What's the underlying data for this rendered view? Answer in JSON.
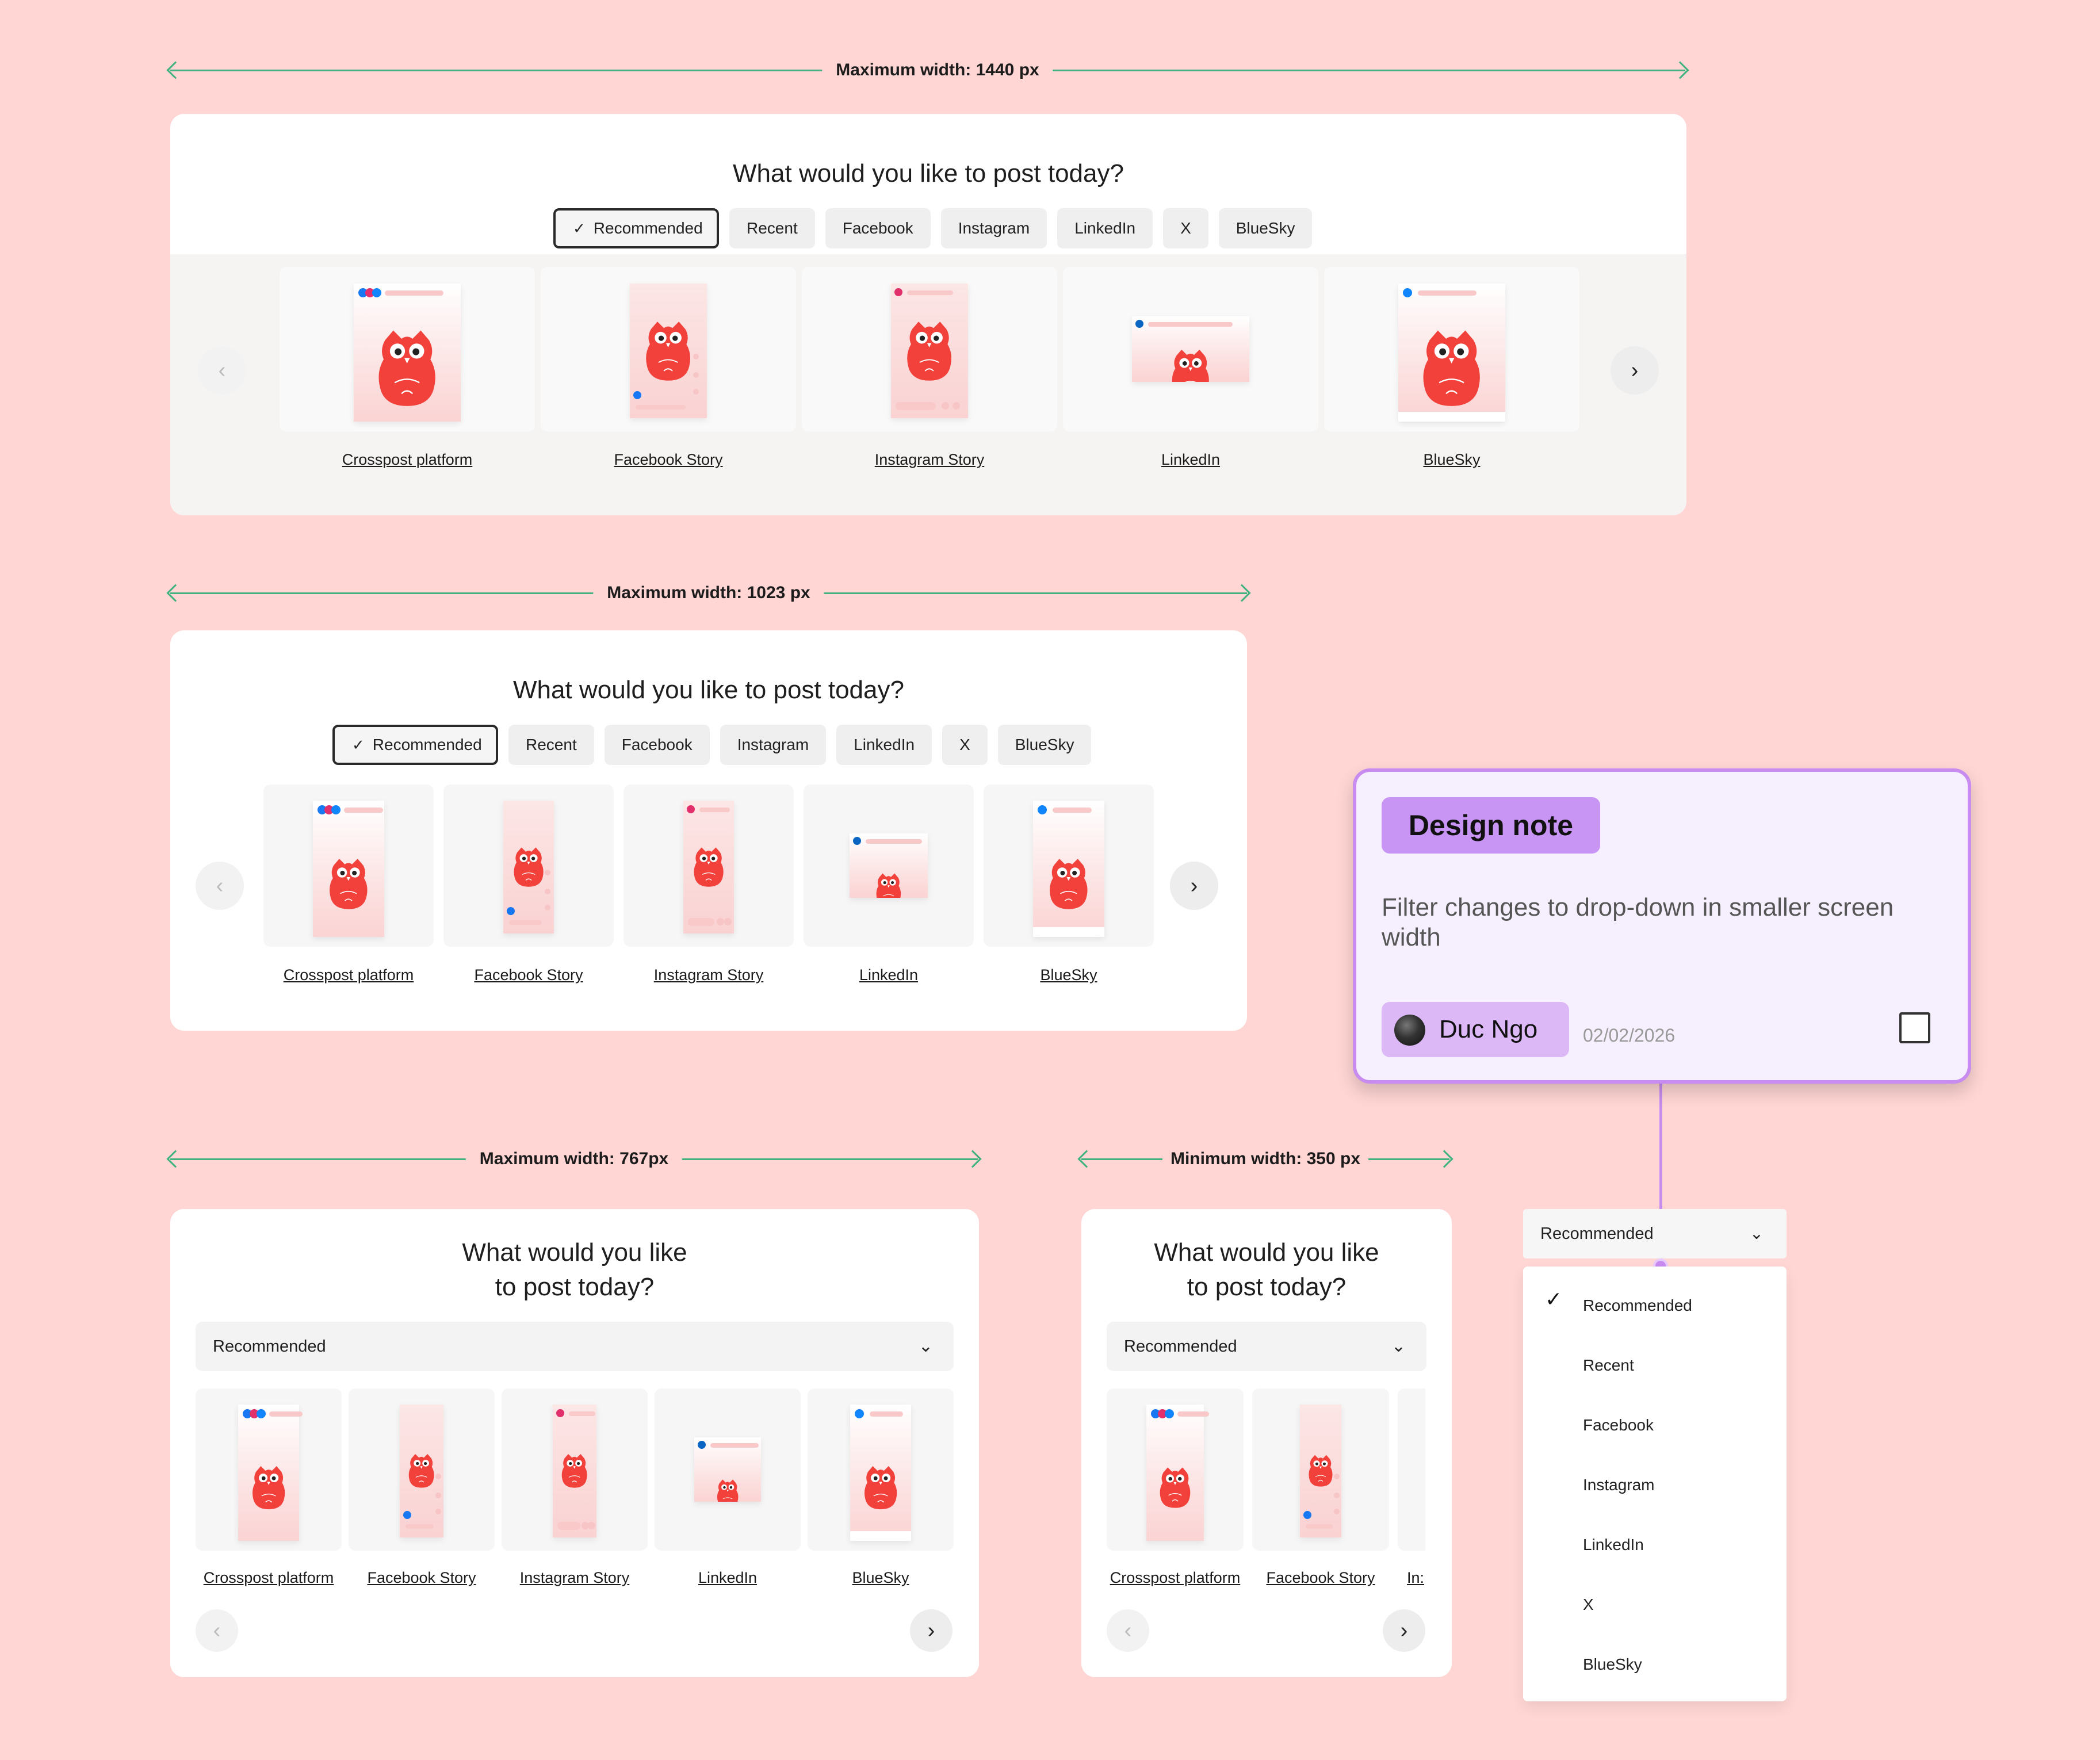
{
  "annotations": {
    "w1440": "Maximum width: 1440 px",
    "w1023": "Maximum width: 1023 px",
    "w767": "Maximum width: 767px",
    "w350": "Minimum width: 350 px"
  },
  "title_one_line": "What would you like to post today?",
  "title_line1": "What would you like",
  "title_line2": "to post today?",
  "filters": [
    "Recommended",
    "Recent",
    "Facebook",
    "Instagram",
    "LinkedIn",
    "X",
    "BlueSky"
  ],
  "check_glyph": "✓",
  "selected_filter": "Recommended",
  "templates": [
    "Crosspost platform",
    "Facebook Story",
    "Instagram Story",
    "LinkedIn",
    "BlueSky"
  ],
  "truncated_template": "In:",
  "nav": {
    "prev": "‹",
    "next": "›",
    "chevron_down": "⌄"
  },
  "design_note": {
    "tag": "Design note",
    "body": "Filter changes to drop-down in smaller screen width",
    "user": "Duc Ngo",
    "date": "02/02/2026"
  },
  "dropdown": {
    "selected": "Recommended",
    "options": [
      "Recommended",
      "Recent",
      "Facebook",
      "Instagram",
      "LinkedIn",
      "X",
      "BlueSky"
    ]
  },
  "colors": {
    "background": "#FFD6D4",
    "accent_green": "#3FB27F",
    "owl_red": "#F2413B",
    "note_border": "#C88BF0",
    "note_tag": "#C895F5"
  }
}
